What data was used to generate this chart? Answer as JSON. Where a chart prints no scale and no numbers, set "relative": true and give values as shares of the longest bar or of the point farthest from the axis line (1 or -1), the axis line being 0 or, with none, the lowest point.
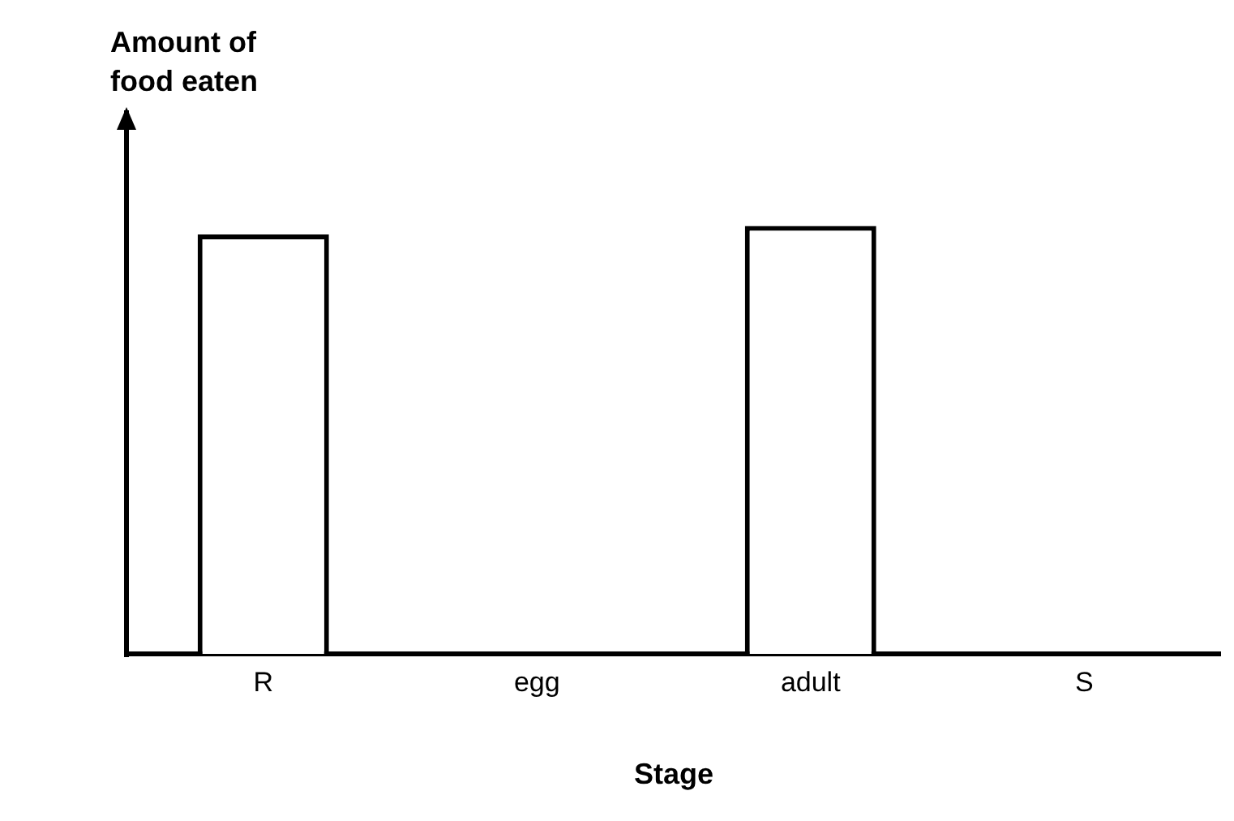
{
  "chart_data": {
    "type": "bar",
    "relative": true,
    "ylabel": "Amount of food eaten",
    "xlabel": "Stage",
    "categories": [
      "R",
      "egg",
      "adult",
      "S"
    ],
    "values": [
      0.98,
      0,
      1,
      0
    ],
    "color": "#ffffff",
    "grid": false,
    "legend": false
  }
}
